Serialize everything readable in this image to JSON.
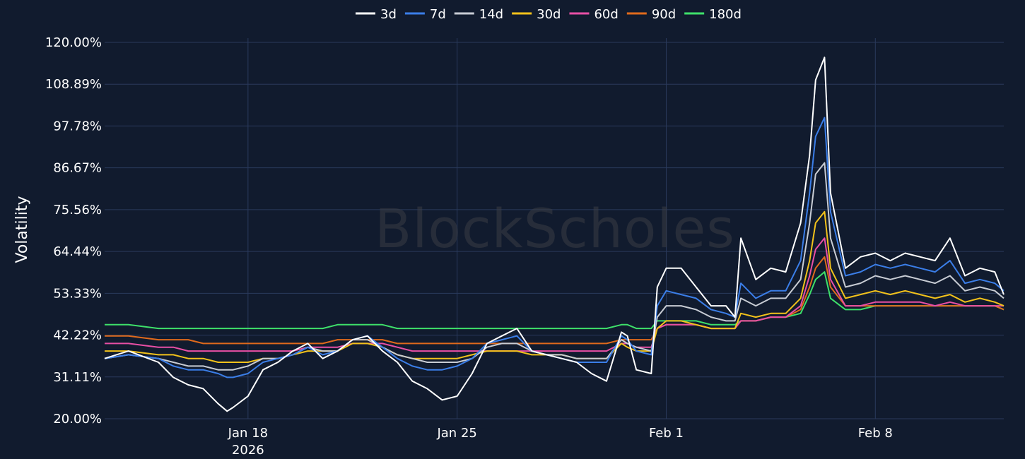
{
  "watermark": "BlockScholes",
  "chart_data": {
    "type": "line",
    "ylabel": "Volatility",
    "ylim": [
      20,
      120
    ],
    "y_ticks": [
      "120.00%",
      "108.89%",
      "97.78%",
      "86.67%",
      "75.56%",
      "64.44%",
      "53.33%",
      "42.22%",
      "31.11%",
      "20.00%"
    ],
    "y_tick_values": [
      120,
      108.89,
      97.78,
      86.67,
      75.56,
      64.44,
      53.33,
      42.22,
      31.11,
      20
    ],
    "x_ticks": [
      {
        "day": 18,
        "label": "Jan 18",
        "sublabel": "2026"
      },
      {
        "day": 25,
        "label": "Jan 25",
        "sublabel": ""
      },
      {
        "day": 32,
        "label": "Feb 1",
        "sublabel": ""
      },
      {
        "day": 39,
        "label": "Feb 8",
        "sublabel": ""
      }
    ],
    "xlim_days": [
      13.2,
      43.3
    ],
    "grid": true,
    "legend_position": "top-center",
    "x_days": [
      13.2,
      14,
      15,
      15.5,
      16,
      16.5,
      17,
      17.3,
      17.5,
      18,
      18.5,
      19,
      19.5,
      20,
      20.5,
      21,
      21.5,
      22,
      22.5,
      23,
      23.5,
      24,
      24.5,
      25,
      25.5,
      26,
      26.5,
      27,
      27.5,
      28,
      28.5,
      29,
      29.5,
      30,
      30.5,
      30.7,
      31,
      31.5,
      31.7,
      32,
      32.5,
      33,
      33.5,
      34,
      34.3,
      34.5,
      35,
      35.5,
      36,
      36.5,
      36.8,
      37,
      37.3,
      37.5,
      38,
      38.5,
      39,
      39.5,
      40,
      40.5,
      41,
      41.5,
      42,
      42.5,
      43,
      43.3
    ],
    "series": [
      {
        "name": "3d",
        "color": "#ffffff",
        "values": [
          36,
          38,
          35,
          31,
          29,
          28,
          24,
          22,
          23,
          26,
          33,
          35,
          38,
          40,
          36,
          38,
          41,
          42,
          38,
          35,
          30,
          28,
          25,
          26,
          32,
          40,
          42,
          44,
          38,
          37,
          36,
          35,
          32,
          30,
          43,
          42,
          33,
          32,
          55,
          60,
          60,
          55,
          50,
          50,
          47,
          68,
          57,
          60,
          59,
          72,
          90,
          110,
          116,
          80,
          60,
          63,
          64,
          62,
          64,
          63,
          62,
          68,
          58,
          60,
          59,
          53
        ]
      },
      {
        "name": "7d",
        "color": "#3b7ee8",
        "values": [
          36,
          37,
          36,
          34,
          33,
          33,
          32,
          31,
          31,
          32,
          35,
          36,
          37,
          39,
          37,
          38,
          41,
          42,
          39,
          36,
          34,
          33,
          33,
          34,
          36,
          40,
          41,
          42,
          38,
          37,
          36,
          35,
          35,
          35,
          42,
          41,
          38,
          37,
          50,
          54,
          53,
          52,
          49,
          48,
          47,
          56,
          52,
          54,
          54,
          62,
          80,
          95,
          100,
          75,
          58,
          59,
          61,
          60,
          61,
          60,
          59,
          62,
          56,
          57,
          56,
          54
        ]
      },
      {
        "name": "14d",
        "color": "#c8ccd4",
        "values": [
          36,
          37,
          36,
          35,
          34,
          34,
          33,
          33,
          33,
          34,
          36,
          36,
          37,
          39,
          38,
          38,
          41,
          41,
          39,
          37,
          36,
          35,
          35,
          35,
          36,
          39,
          40,
          40,
          38,
          37,
          37,
          36,
          36,
          36,
          41,
          40,
          39,
          38,
          47,
          50,
          50,
          49,
          47,
          46,
          46,
          52,
          50,
          52,
          52,
          57,
          72,
          85,
          88,
          68,
          55,
          56,
          58,
          57,
          58,
          57,
          56,
          58,
          54,
          55,
          54,
          52
        ]
      },
      {
        "name": "30d",
        "color": "#f2c21b",
        "values": [
          38,
          38,
          37,
          37,
          36,
          36,
          35,
          35,
          35,
          35,
          36,
          36,
          37,
          38,
          38,
          38,
          40,
          40,
          39,
          37,
          36,
          36,
          36,
          36,
          37,
          38,
          38,
          38,
          37,
          37,
          37,
          36,
          36,
          36,
          40,
          39,
          38,
          38,
          44,
          46,
          46,
          45,
          44,
          44,
          44,
          48,
          47,
          48,
          48,
          52,
          62,
          72,
          75,
          60,
          52,
          53,
          54,
          53,
          54,
          53,
          52,
          53,
          51,
          52,
          51,
          50
        ]
      },
      {
        "name": "60d",
        "color": "#e84fa5",
        "values": [
          40,
          40,
          39,
          39,
          38,
          38,
          38,
          38,
          38,
          38,
          38,
          38,
          38,
          39,
          39,
          39,
          40,
          40,
          40,
          39,
          38,
          38,
          38,
          38,
          38,
          38,
          38,
          38,
          38,
          38,
          38,
          38,
          38,
          38,
          40,
          40,
          39,
          39,
          44,
          45,
          45,
          45,
          44,
          44,
          44,
          46,
          46,
          47,
          47,
          50,
          58,
          65,
          68,
          57,
          50,
          50,
          51,
          51,
          51,
          51,
          50,
          51,
          50,
          50,
          50,
          50
        ]
      },
      {
        "name": "90d",
        "color": "#e06a1c",
        "values": [
          42,
          42,
          41,
          41,
          41,
          40,
          40,
          40,
          40,
          40,
          40,
          40,
          40,
          40,
          40,
          41,
          41,
          41,
          41,
          40,
          40,
          40,
          40,
          40,
          40,
          40,
          40,
          40,
          40,
          40,
          40,
          40,
          40,
          40,
          41,
          41,
          41,
          41,
          44,
          45,
          45,
          45,
          44,
          44,
          44,
          46,
          46,
          47,
          47,
          49,
          55,
          60,
          63,
          55,
          50,
          50,
          50,
          50,
          50,
          50,
          50,
          50,
          50,
          50,
          50,
          49
        ]
      },
      {
        "name": "180d",
        "color": "#3ee06a",
        "values": [
          45,
          45,
          44,
          44,
          44,
          44,
          44,
          44,
          44,
          44,
          44,
          44,
          44,
          44,
          44,
          45,
          45,
          45,
          45,
          44,
          44,
          44,
          44,
          44,
          44,
          44,
          44,
          44,
          44,
          44,
          44,
          44,
          44,
          44,
          45,
          45,
          44,
          44,
          46,
          46,
          46,
          46,
          45,
          45,
          45,
          46,
          46,
          47,
          47,
          48,
          53,
          57,
          59,
          52,
          49,
          49,
          50,
          50,
          50,
          50,
          50,
          50,
          50,
          50,
          50,
          49
        ]
      }
    ]
  }
}
